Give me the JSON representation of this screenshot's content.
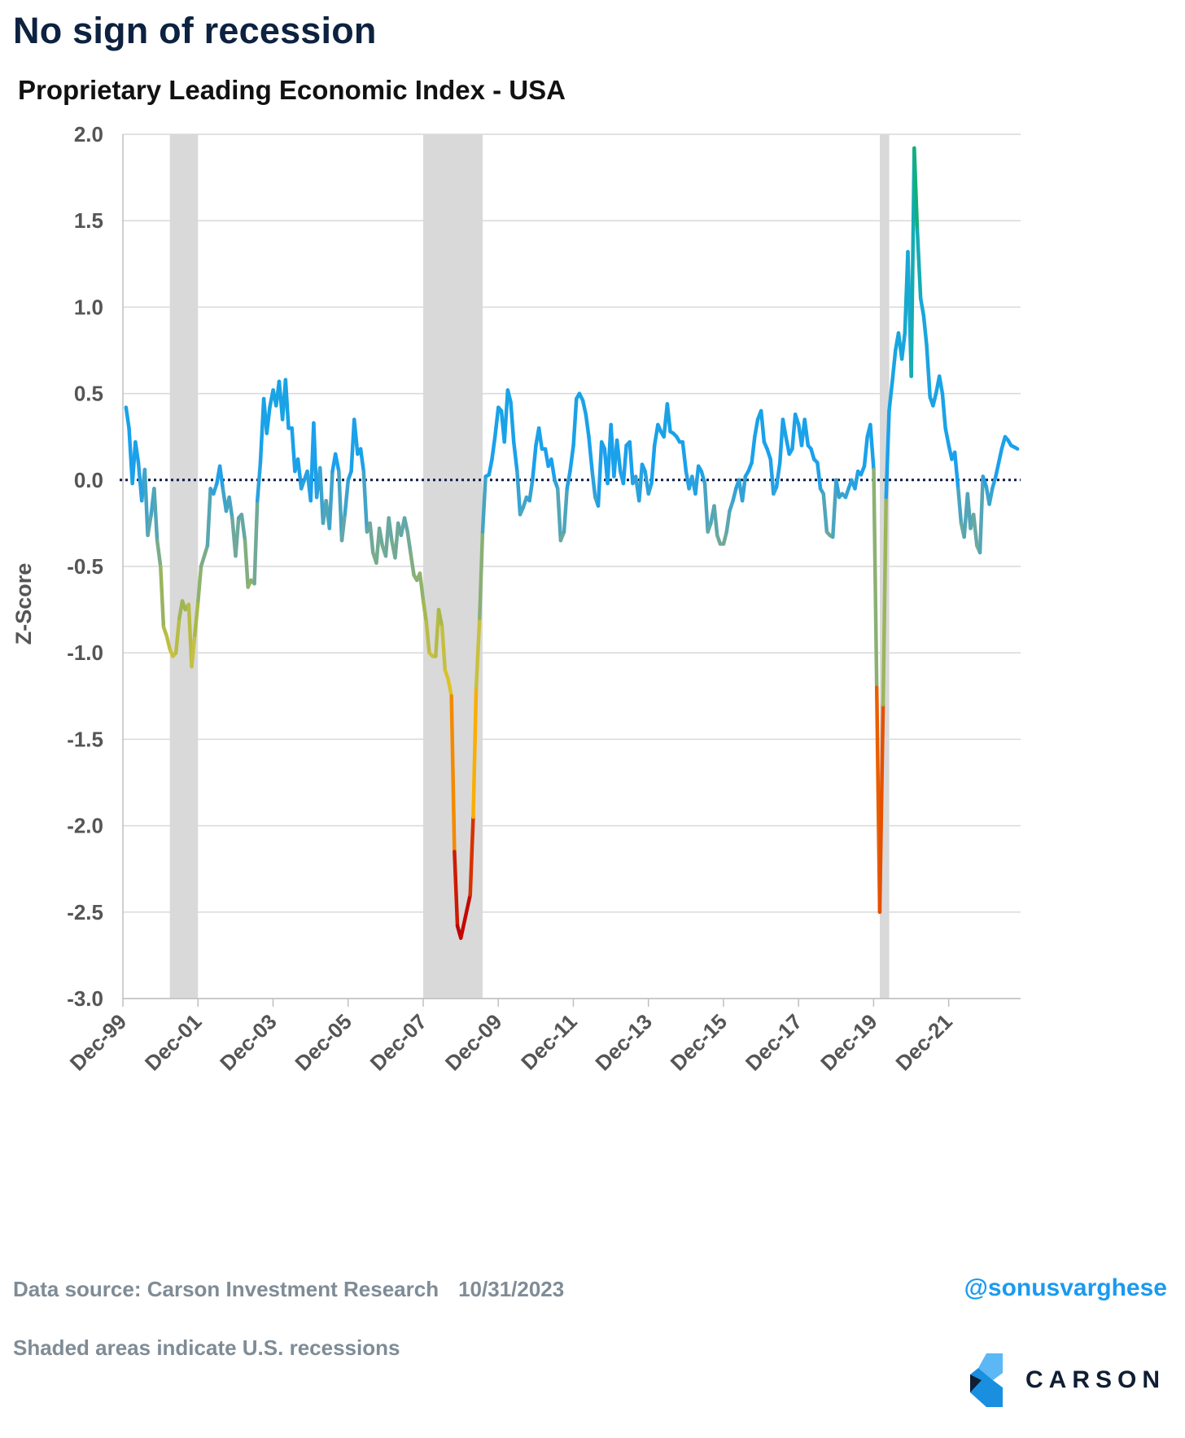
{
  "page": {
    "title": "No sign of recession",
    "subtitle": "Proprietary Leading Economic Index - USA",
    "source_label": "Data source: Carson Investment Research",
    "source_date": "10/31/2023",
    "note": "Shaded areas indicate U.S. recessions",
    "handle": "@sonusvarghese",
    "logo_text": "CARSON"
  },
  "colors": {
    "title": "#0d2240",
    "grid": "#d9d9d9",
    "recession_shade": "#d9d9d9",
    "zero_line": "#0d1b4a",
    "positive": "#1aa0ee",
    "neutral": "#6aa8a0",
    "mild_negative": "#a8b84a",
    "warning": "#ffc400",
    "severe": "#c00000",
    "peak": "#10b060",
    "handle": "#1a9af0"
  },
  "chart_data": {
    "type": "line",
    "title": "Proprietary Leading Economic Index - USA",
    "xlabel": "",
    "ylabel": "Z-Score",
    "ylim": [
      -3.0,
      2.0
    ],
    "yticks": [
      2.0,
      1.5,
      1.0,
      0.5,
      0.0,
      -0.5,
      -1.0,
      -1.5,
      -2.0,
      -2.5,
      -3.0
    ],
    "ytick_labels": [
      "2.0",
      "1.5",
      "1.0",
      "0.5",
      "0.0",
      "-0.5",
      "-1.0",
      "-1.5",
      "-2.0",
      "-2.5",
      "-3.0"
    ],
    "xlim_years": [
      1999.917,
      2023.833
    ],
    "xticks": [
      1999.917,
      2001.917,
      2003.917,
      2005.917,
      2007.917,
      2009.917,
      2011.917,
      2013.917,
      2015.917,
      2017.917,
      2019.917,
      2021.917
    ],
    "xtick_labels": [
      "Dec-99",
      "Dec-01",
      "Dec-03",
      "Dec-05",
      "Dec-07",
      "Dec-09",
      "Dec-11",
      "Dec-13",
      "Dec-15",
      "Dec-17",
      "Dec-19",
      "Dec-21"
    ],
    "grid": true,
    "reference_line": {
      "y": 0.0,
      "style": "dotted"
    },
    "recessions": [
      {
        "start": 2001.167,
        "end": 2001.917
      },
      {
        "start": 2007.917,
        "end": 2009.5
      },
      {
        "start": 2020.083,
        "end": 2020.333
      }
    ],
    "series": [
      {
        "name": "Proprietary Leading Economic Index",
        "points": [
          [
            2000.0,
            0.42
          ],
          [
            2000.08,
            0.3
          ],
          [
            2000.17,
            -0.02
          ],
          [
            2000.25,
            0.22
          ],
          [
            2000.33,
            0.1
          ],
          [
            2000.42,
            -0.12
          ],
          [
            2000.5,
            0.06
          ],
          [
            2000.58,
            -0.32
          ],
          [
            2000.67,
            -0.2
          ],
          [
            2000.75,
            -0.05
          ],
          [
            2000.83,
            -0.35
          ],
          [
            2000.92,
            -0.5
          ],
          [
            2001.0,
            -0.85
          ],
          [
            2001.08,
            -0.9
          ],
          [
            2001.17,
            -0.98
          ],
          [
            2001.25,
            -1.02
          ],
          [
            2001.33,
            -1.0
          ],
          [
            2001.42,
            -0.8
          ],
          [
            2001.5,
            -0.7
          ],
          [
            2001.58,
            -0.75
          ],
          [
            2001.67,
            -0.72
          ],
          [
            2001.75,
            -1.08
          ],
          [
            2001.83,
            -0.9
          ],
          [
            2001.92,
            -0.7
          ],
          [
            2002.0,
            -0.5
          ],
          [
            2002.17,
            -0.38
          ],
          [
            2002.25,
            -0.05
          ],
          [
            2002.33,
            -0.08
          ],
          [
            2002.42,
            -0.02
          ],
          [
            2002.5,
            0.08
          ],
          [
            2002.58,
            -0.05
          ],
          [
            2002.67,
            -0.18
          ],
          [
            2002.75,
            -0.1
          ],
          [
            2002.83,
            -0.22
          ],
          [
            2002.92,
            -0.44
          ],
          [
            2003.0,
            -0.22
          ],
          [
            2003.08,
            -0.2
          ],
          [
            2003.17,
            -0.35
          ],
          [
            2003.25,
            -0.62
          ],
          [
            2003.33,
            -0.58
          ],
          [
            2003.42,
            -0.6
          ],
          [
            2003.5,
            -0.12
          ],
          [
            2003.58,
            0.1
          ],
          [
            2003.67,
            0.47
          ],
          [
            2003.75,
            0.27
          ],
          [
            2003.83,
            0.42
          ],
          [
            2003.92,
            0.52
          ],
          [
            2004.0,
            0.43
          ],
          [
            2004.08,
            0.57
          ],
          [
            2004.17,
            0.35
          ],
          [
            2004.25,
            0.58
          ],
          [
            2004.33,
            0.3
          ],
          [
            2004.42,
            0.3
          ],
          [
            2004.5,
            0.05
          ],
          [
            2004.58,
            0.12
          ],
          [
            2004.67,
            -0.05
          ],
          [
            2004.75,
            0.0
          ],
          [
            2004.83,
            0.05
          ],
          [
            2004.92,
            -0.12
          ],
          [
            2005.0,
            0.33
          ],
          [
            2005.08,
            -0.1
          ],
          [
            2005.17,
            0.07
          ],
          [
            2005.25,
            -0.25
          ],
          [
            2005.33,
            -0.12
          ],
          [
            2005.42,
            -0.28
          ],
          [
            2005.5,
            0.05
          ],
          [
            2005.58,
            0.15
          ],
          [
            2005.67,
            0.05
          ],
          [
            2005.75,
            -0.35
          ],
          [
            2005.83,
            -0.2
          ],
          [
            2005.92,
            0.0
          ],
          [
            2006.0,
            0.05
          ],
          [
            2006.08,
            0.35
          ],
          [
            2006.17,
            0.15
          ],
          [
            2006.25,
            0.18
          ],
          [
            2006.33,
            0.05
          ],
          [
            2006.42,
            -0.3
          ],
          [
            2006.5,
            -0.25
          ],
          [
            2006.58,
            -0.42
          ],
          [
            2006.67,
            -0.48
          ],
          [
            2006.75,
            -0.28
          ],
          [
            2006.83,
            -0.38
          ],
          [
            2006.92,
            -0.44
          ],
          [
            2007.0,
            -0.22
          ],
          [
            2007.08,
            -0.35
          ],
          [
            2007.17,
            -0.45
          ],
          [
            2007.25,
            -0.25
          ],
          [
            2007.33,
            -0.32
          ],
          [
            2007.42,
            -0.22
          ],
          [
            2007.5,
            -0.3
          ],
          [
            2007.58,
            -0.42
          ],
          [
            2007.67,
            -0.55
          ],
          [
            2007.75,
            -0.58
          ],
          [
            2007.83,
            -0.54
          ],
          [
            2007.92,
            -0.7
          ],
          [
            2008.0,
            -0.82
          ],
          [
            2008.08,
            -1.0
          ],
          [
            2008.17,
            -1.02
          ],
          [
            2008.25,
            -1.02
          ],
          [
            2008.33,
            -0.75
          ],
          [
            2008.42,
            -0.85
          ],
          [
            2008.5,
            -1.1
          ],
          [
            2008.58,
            -1.15
          ],
          [
            2008.67,
            -1.25
          ],
          [
            2008.75,
            -2.15
          ],
          [
            2008.83,
            -2.58
          ],
          [
            2008.92,
            -2.65
          ],
          [
            2009.17,
            -2.4
          ],
          [
            2009.25,
            -1.95
          ],
          [
            2009.33,
            -1.2
          ],
          [
            2009.42,
            -0.8
          ],
          [
            2009.5,
            -0.3
          ],
          [
            2009.58,
            0.02
          ],
          [
            2009.67,
            0.03
          ],
          [
            2009.75,
            0.12
          ],
          [
            2009.83,
            0.25
          ],
          [
            2009.92,
            0.42
          ],
          [
            2010.0,
            0.4
          ],
          [
            2010.08,
            0.22
          ],
          [
            2010.17,
            0.52
          ],
          [
            2010.25,
            0.45
          ],
          [
            2010.33,
            0.22
          ],
          [
            2010.42,
            0.05
          ],
          [
            2010.5,
            -0.2
          ],
          [
            2010.58,
            -0.16
          ],
          [
            2010.67,
            -0.1
          ],
          [
            2010.75,
            -0.12
          ],
          [
            2010.83,
            0.0
          ],
          [
            2010.92,
            0.2
          ],
          [
            2011.0,
            0.3
          ],
          [
            2011.08,
            0.18
          ],
          [
            2011.17,
            0.18
          ],
          [
            2011.25,
            0.08
          ],
          [
            2011.33,
            0.12
          ],
          [
            2011.42,
            0.0
          ],
          [
            2011.5,
            -0.05
          ],
          [
            2011.58,
            -0.35
          ],
          [
            2011.67,
            -0.3
          ],
          [
            2011.75,
            -0.05
          ],
          [
            2011.83,
            0.05
          ],
          [
            2011.92,
            0.2
          ],
          [
            2012.0,
            0.47
          ],
          [
            2012.08,
            0.5
          ],
          [
            2012.17,
            0.46
          ],
          [
            2012.25,
            0.38
          ],
          [
            2012.33,
            0.25
          ],
          [
            2012.42,
            0.05
          ],
          [
            2012.5,
            -0.1
          ],
          [
            2012.58,
            -0.15
          ],
          [
            2012.67,
            0.22
          ],
          [
            2012.75,
            0.18
          ],
          [
            2012.83,
            -0.02
          ],
          [
            2012.92,
            0.32
          ],
          [
            2013.0,
            0.02
          ],
          [
            2013.08,
            0.23
          ],
          [
            2013.17,
            0.05
          ],
          [
            2013.25,
            -0.02
          ],
          [
            2013.33,
            0.2
          ],
          [
            2013.42,
            0.22
          ],
          [
            2013.5,
            -0.02
          ],
          [
            2013.58,
            0.02
          ],
          [
            2013.67,
            -0.12
          ],
          [
            2013.75,
            0.09
          ],
          [
            2013.83,
            0.05
          ],
          [
            2013.92,
            -0.08
          ],
          [
            2014.0,
            -0.02
          ],
          [
            2014.08,
            0.2
          ],
          [
            2014.17,
            0.32
          ],
          [
            2014.25,
            0.28
          ],
          [
            2014.33,
            0.25
          ],
          [
            2014.42,
            0.44
          ],
          [
            2014.5,
            0.28
          ],
          [
            2014.58,
            0.27
          ],
          [
            2014.67,
            0.25
          ],
          [
            2014.75,
            0.22
          ],
          [
            2014.83,
            0.22
          ],
          [
            2014.92,
            0.05
          ],
          [
            2015.0,
            -0.05
          ],
          [
            2015.08,
            0.02
          ],
          [
            2015.17,
            -0.08
          ],
          [
            2015.25,
            0.08
          ],
          [
            2015.33,
            0.05
          ],
          [
            2015.42,
            -0.02
          ],
          [
            2015.5,
            -0.3
          ],
          [
            2015.58,
            -0.25
          ],
          [
            2015.67,
            -0.15
          ],
          [
            2015.75,
            -0.32
          ],
          [
            2015.83,
            -0.37
          ],
          [
            2015.92,
            -0.37
          ],
          [
            2016.0,
            -0.3
          ],
          [
            2016.08,
            -0.18
          ],
          [
            2016.17,
            -0.12
          ],
          [
            2016.25,
            -0.05
          ],
          [
            2016.33,
            0.0
          ],
          [
            2016.42,
            -0.12
          ],
          [
            2016.5,
            0.02
          ],
          [
            2016.58,
            0.05
          ],
          [
            2016.67,
            0.1
          ],
          [
            2016.75,
            0.25
          ],
          [
            2016.83,
            0.35
          ],
          [
            2016.92,
            0.4
          ],
          [
            2017.0,
            0.22
          ],
          [
            2017.08,
            0.18
          ],
          [
            2017.17,
            0.12
          ],
          [
            2017.25,
            -0.08
          ],
          [
            2017.33,
            -0.04
          ],
          [
            2017.42,
            0.1
          ],
          [
            2017.5,
            0.35
          ],
          [
            2017.58,
            0.25
          ],
          [
            2017.67,
            0.15
          ],
          [
            2017.75,
            0.18
          ],
          [
            2017.83,
            0.38
          ],
          [
            2017.92,
            0.32
          ],
          [
            2018.0,
            0.2
          ],
          [
            2018.08,
            0.35
          ],
          [
            2018.17,
            0.2
          ],
          [
            2018.25,
            0.18
          ],
          [
            2018.33,
            0.12
          ],
          [
            2018.42,
            0.1
          ],
          [
            2018.5,
            -0.05
          ],
          [
            2018.58,
            -0.08
          ],
          [
            2018.67,
            -0.3
          ],
          [
            2018.75,
            -0.32
          ],
          [
            2018.83,
            -0.33
          ],
          [
            2018.92,
            0.0
          ],
          [
            2019.0,
            -0.1
          ],
          [
            2019.08,
            -0.08
          ],
          [
            2019.17,
            -0.1
          ],
          [
            2019.25,
            -0.05
          ],
          [
            2019.33,
            0.0
          ],
          [
            2019.42,
            -0.05
          ],
          [
            2019.5,
            0.05
          ],
          [
            2019.58,
            0.03
          ],
          [
            2019.67,
            0.08
          ],
          [
            2019.75,
            0.25
          ],
          [
            2019.83,
            0.32
          ],
          [
            2019.92,
            0.06
          ],
          [
            2020.0,
            -1.2
          ],
          [
            2020.08,
            -2.5
          ],
          [
            2020.17,
            -1.3
          ],
          [
            2020.25,
            -0.1
          ],
          [
            2020.33,
            0.4
          ],
          [
            2020.42,
            0.58
          ],
          [
            2020.5,
            0.75
          ],
          [
            2020.58,
            0.85
          ],
          [
            2020.67,
            0.7
          ],
          [
            2020.75,
            0.85
          ],
          [
            2020.83,
            1.32
          ],
          [
            2020.92,
            0.6
          ],
          [
            2021.0,
            1.92
          ],
          [
            2021.08,
            1.45
          ],
          [
            2021.17,
            1.05
          ],
          [
            2021.25,
            0.95
          ],
          [
            2021.33,
            0.78
          ],
          [
            2021.42,
            0.48
          ],
          [
            2021.5,
            0.43
          ],
          [
            2021.58,
            0.5
          ],
          [
            2021.67,
            0.6
          ],
          [
            2021.75,
            0.5
          ],
          [
            2021.83,
            0.3
          ],
          [
            2021.92,
            0.2
          ],
          [
            2022.0,
            0.12
          ],
          [
            2022.08,
            0.16
          ],
          [
            2022.17,
            -0.05
          ],
          [
            2022.25,
            -0.25
          ],
          [
            2022.33,
            -0.33
          ],
          [
            2022.42,
            -0.08
          ],
          [
            2022.5,
            -0.28
          ],
          [
            2022.58,
            -0.2
          ],
          [
            2022.67,
            -0.38
          ],
          [
            2022.75,
            -0.42
          ],
          [
            2022.83,
            0.02
          ],
          [
            2022.92,
            -0.04
          ],
          [
            2023.0,
            -0.14
          ],
          [
            2023.08,
            -0.05
          ],
          [
            2023.17,
            0.02
          ],
          [
            2023.25,
            0.1
          ],
          [
            2023.33,
            0.18
          ],
          [
            2023.42,
            0.25
          ],
          [
            2023.5,
            0.23
          ],
          [
            2023.58,
            0.2
          ],
          [
            2023.67,
            0.19
          ],
          [
            2023.75,
            0.18
          ]
        ]
      }
    ]
  }
}
